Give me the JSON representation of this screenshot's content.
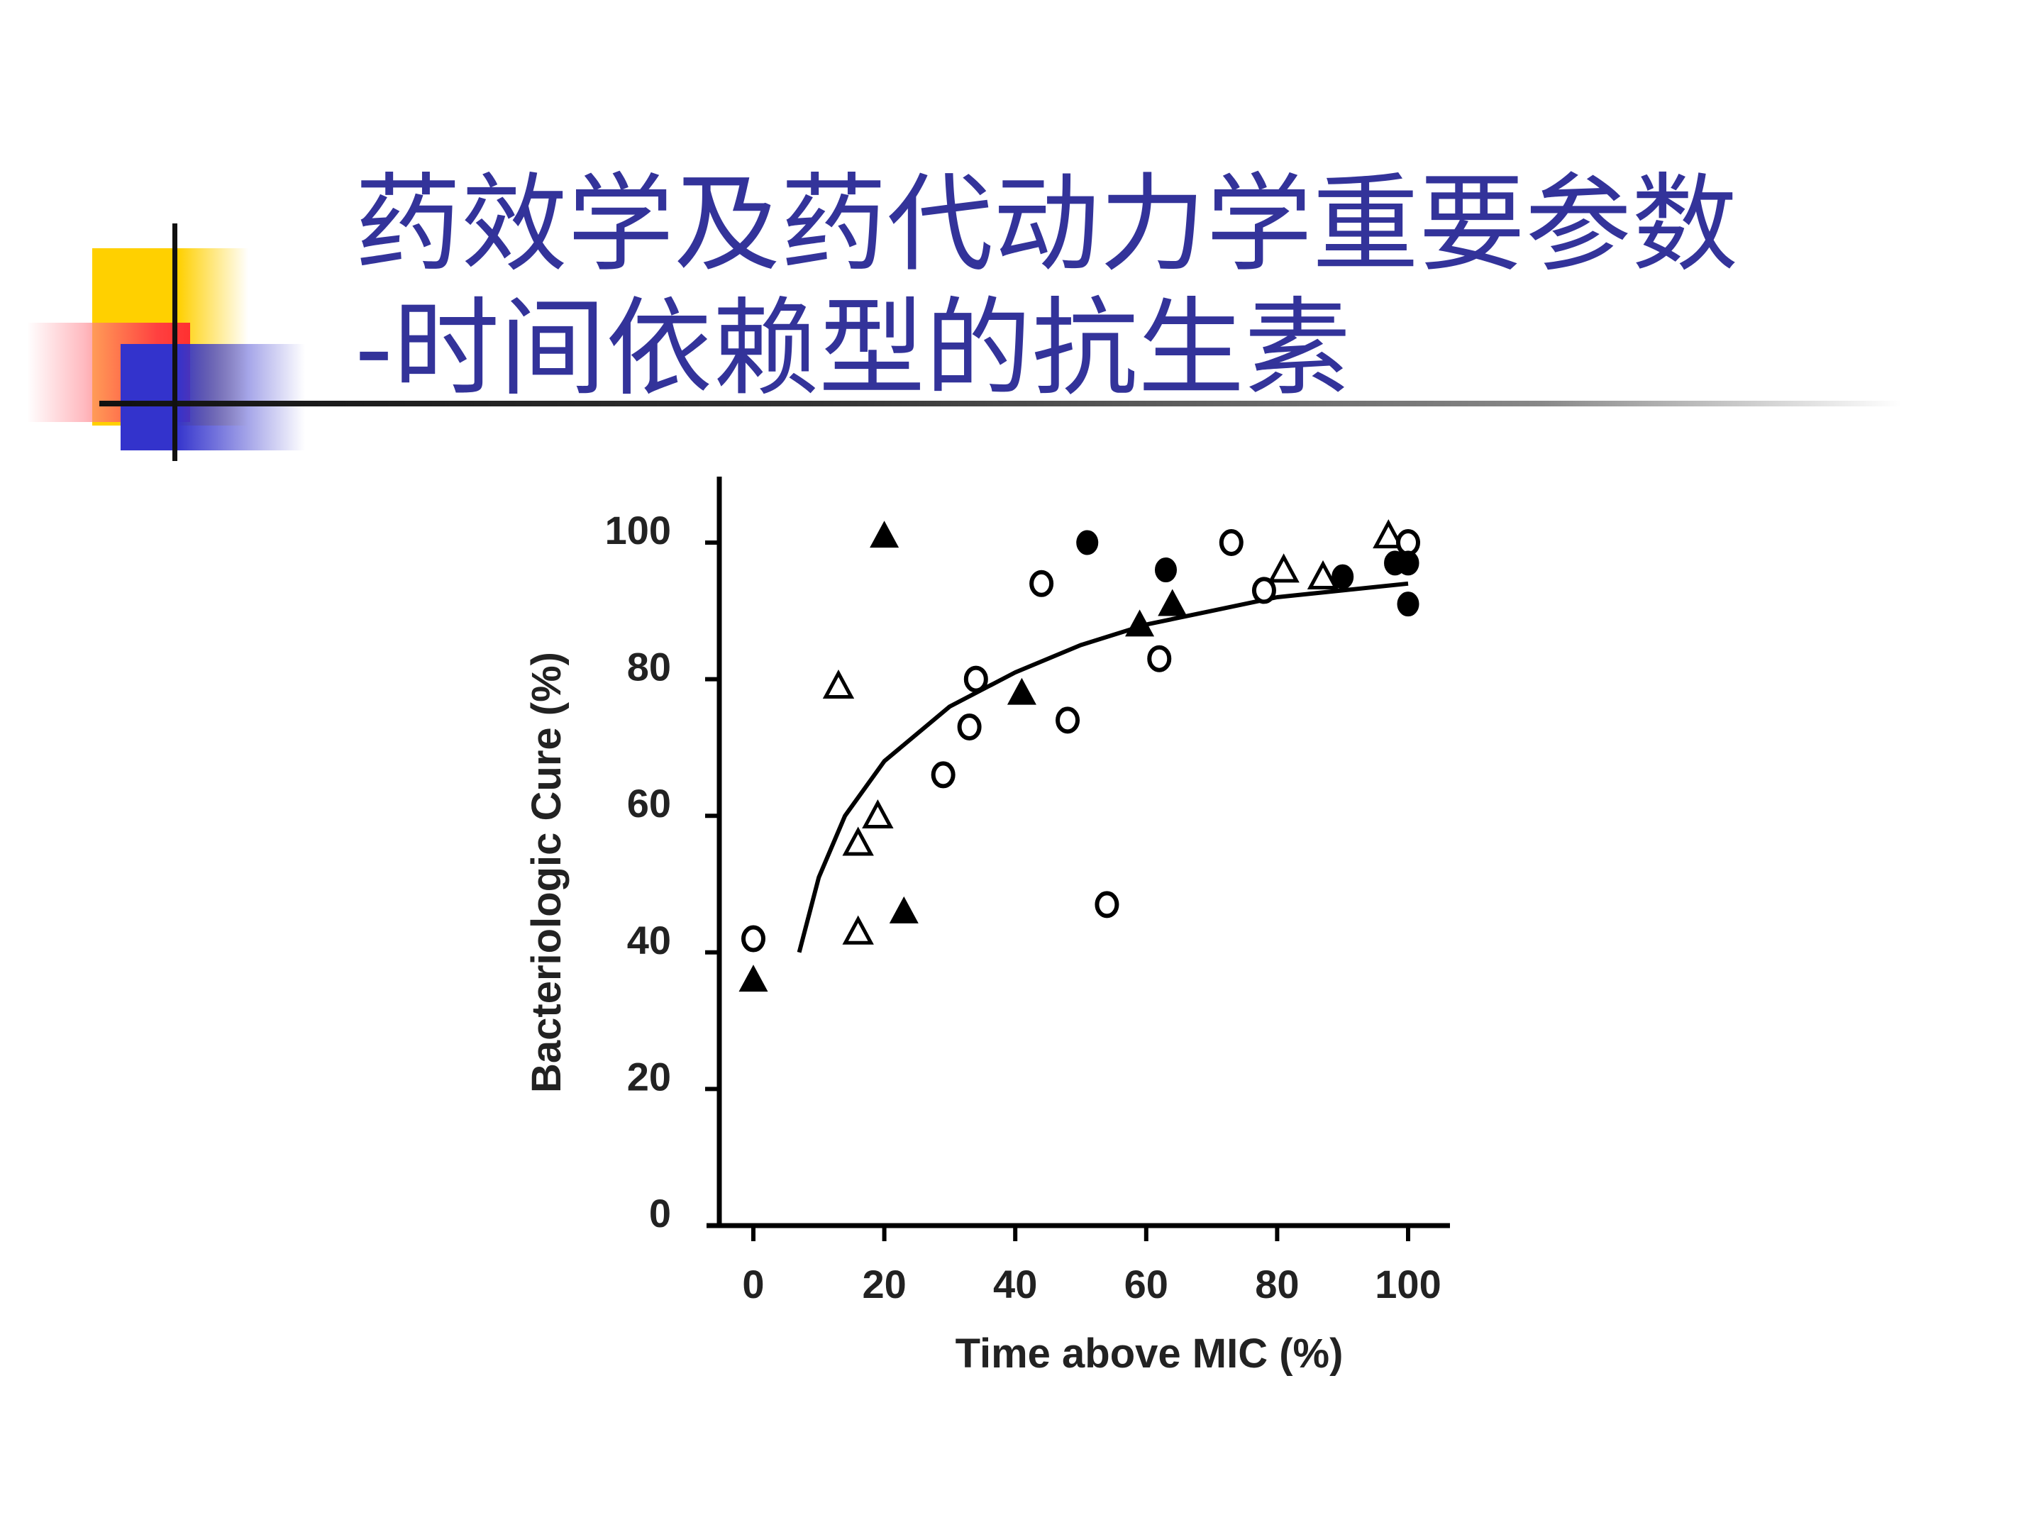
{
  "slide": {
    "title_line1": "药效学及药代动力学重要参数",
    "title_line2": "-时间依赖型的抗生素",
    "title_color": "#33339a"
  },
  "chart_data": {
    "type": "scatter",
    "xlabel": "Time above MIC (%)",
    "ylabel": "Bacteriologic Cure  (%)",
    "xlim": [
      0,
      100
    ],
    "ylim": [
      0,
      100
    ],
    "x_ticks": [
      "0",
      "20",
      "40",
      "60",
      "80",
      "100"
    ],
    "y_ticks": [
      "0",
      "20",
      "40",
      "60",
      "80",
      "100"
    ],
    "grid": false,
    "legend": "none",
    "series": [
      {
        "marker": "filled-triangle",
        "points": [
          {
            "x": 0,
            "y": 36
          },
          {
            "x": 20,
            "y": 101
          },
          {
            "x": 23,
            "y": 46
          },
          {
            "x": 41,
            "y": 78
          },
          {
            "x": 59,
            "y": 88
          },
          {
            "x": 64,
            "y": 91
          }
        ]
      },
      {
        "marker": "open-triangle",
        "points": [
          {
            "x": 13,
            "y": 79
          },
          {
            "x": 16,
            "y": 43
          },
          {
            "x": 16,
            "y": 56
          },
          {
            "x": 19,
            "y": 60
          },
          {
            "x": 81,
            "y": 96
          },
          {
            "x": 87,
            "y": 95
          },
          {
            "x": 97,
            "y": 101
          }
        ]
      },
      {
        "marker": "open-circle",
        "points": [
          {
            "x": 0,
            "y": 42
          },
          {
            "x": 29,
            "y": 66
          },
          {
            "x": 33,
            "y": 73
          },
          {
            "x": 34,
            "y": 80
          },
          {
            "x": 44,
            "y": 94
          },
          {
            "x": 48,
            "y": 74
          },
          {
            "x": 54,
            "y": 47
          },
          {
            "x": 62,
            "y": 83
          },
          {
            "x": 73,
            "y": 100
          },
          {
            "x": 78,
            "y": 93
          },
          {
            "x": 100,
            "y": 100
          }
        ]
      },
      {
        "marker": "filled-circle",
        "points": [
          {
            "x": 51,
            "y": 100
          },
          {
            "x": 63,
            "y": 96
          },
          {
            "x": 90,
            "y": 95
          },
          {
            "x": 98,
            "y": 97
          },
          {
            "x": 100,
            "y": 97
          },
          {
            "x": 100,
            "y": 91
          }
        ]
      }
    ],
    "fit_curve": [
      {
        "x": 7,
        "y": 40
      },
      {
        "x": 10,
        "y": 51
      },
      {
        "x": 14,
        "y": 60
      },
      {
        "x": 20,
        "y": 68
      },
      {
        "x": 30,
        "y": 76
      },
      {
        "x": 40,
        "y": 81
      },
      {
        "x": 50,
        "y": 85
      },
      {
        "x": 60,
        "y": 88
      },
      {
        "x": 70,
        "y": 90
      },
      {
        "x": 80,
        "y": 92
      },
      {
        "x": 90,
        "y": 93
      },
      {
        "x": 100,
        "y": 94
      }
    ]
  }
}
